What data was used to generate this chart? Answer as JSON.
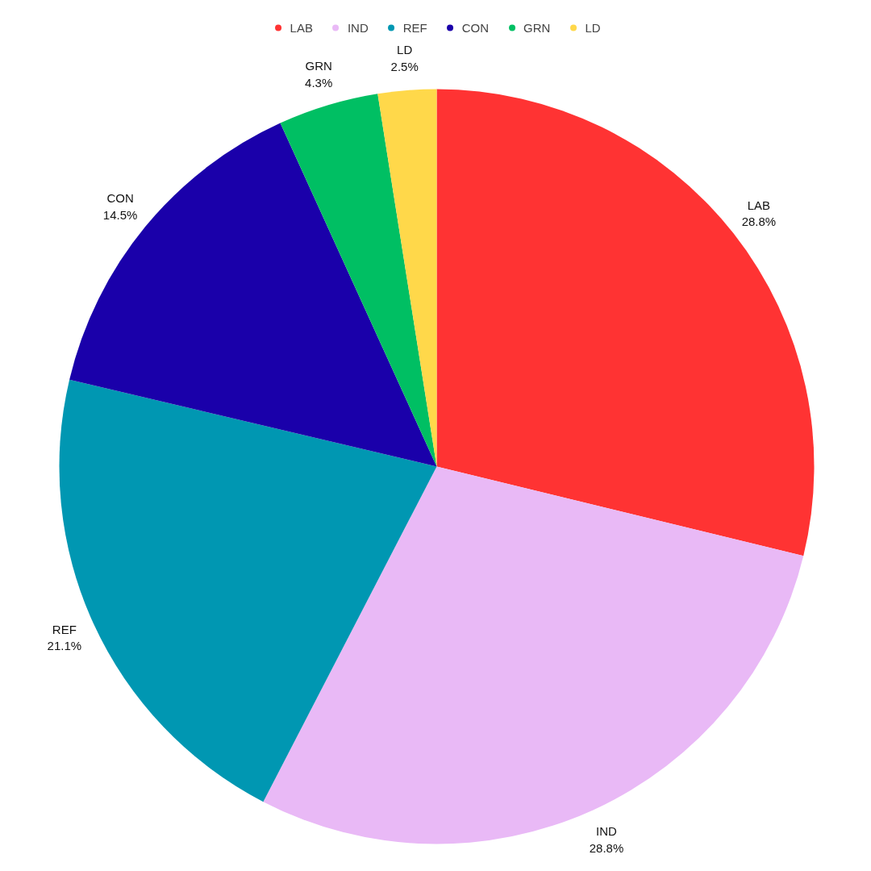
{
  "chart_data": {
    "type": "pie",
    "categories": [
      "LAB",
      "IND",
      "REF",
      "CON",
      "GRN",
      "LD"
    ],
    "values": [
      28.8,
      28.8,
      21.1,
      14.5,
      4.3,
      2.5
    ],
    "value_labels": [
      "28.8%",
      "28.8%",
      "21.1%",
      "14.5%",
      "4.3%",
      "2.5%"
    ],
    "colors": [
      "#ff3333",
      "#e9b9f6",
      "#0097b2",
      "#1a00aa",
      "#00bf63",
      "#ffd84a"
    ],
    "legend": "top"
  }
}
